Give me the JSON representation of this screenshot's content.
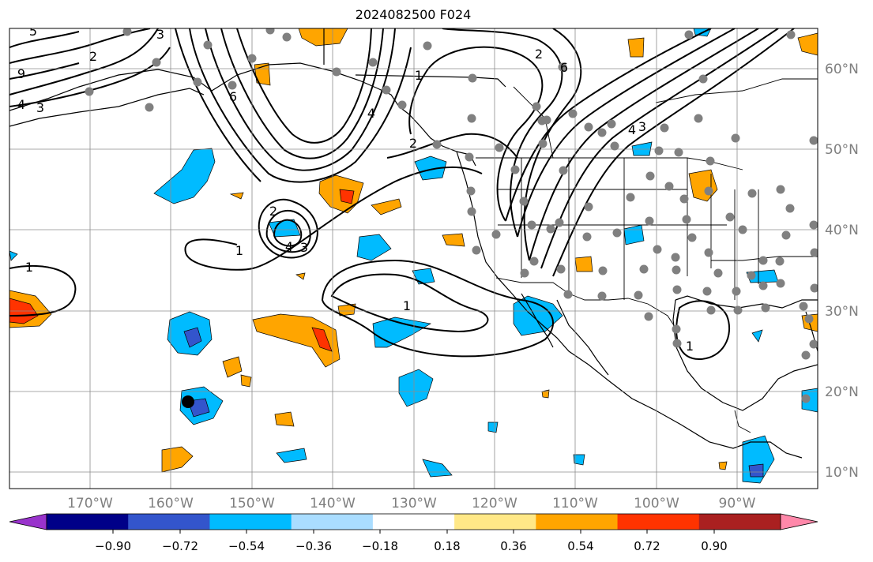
{
  "title": "2024082500 F024",
  "map": {
    "lon_range": [
      -180,
      -80
    ],
    "lat_range": [
      8,
      65
    ],
    "lon_ticks": [
      "170°W",
      "160°W",
      "150°W",
      "140°W",
      "130°W",
      "120°W",
      "110°W",
      "100°W",
      "90°W"
    ],
    "lat_ticks": [
      "60°N",
      "50°N",
      "40°N",
      "30°N",
      "20°N",
      "10°N"
    ],
    "grid": true,
    "marker": {
      "lon": -157.8,
      "lat": 18.7
    }
  },
  "contour_labels": [
    "5",
    "3",
    "2",
    "9",
    "4",
    "3",
    "6",
    "1",
    "4",
    "2",
    "6",
    "2",
    "4",
    "3",
    "2",
    "1",
    "4",
    "3",
    "1",
    "1",
    "1"
  ],
  "colorbar": {
    "ticks": [
      "−0.90",
      "−0.72",
      "−0.54",
      "−0.36",
      "−0.18",
      "0.18",
      "0.36",
      "0.54",
      "0.72",
      "0.90"
    ],
    "colors": {
      "under": "#9933cc",
      "levels": [
        "#000088",
        "#3355cc",
        "#00bbff",
        "#aaddff",
        "#ffffff",
        "#ffe887",
        "#ffa500",
        "#ff3300",
        "#aa2020"
      ],
      "over": "#ff88aa"
    }
  }
}
